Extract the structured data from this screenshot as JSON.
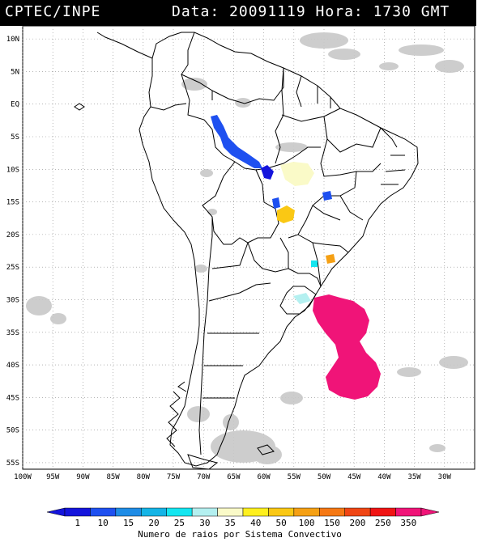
{
  "header": {
    "source": "CPTEC/INPE",
    "date_line": "Data: 20091119 Hora: 1730 GMT"
  },
  "map": {
    "lat_labels": [
      "10N",
      "5N",
      "EQ",
      "5S",
      "10S",
      "15S",
      "20S",
      "25S",
      "30S",
      "35S",
      "40S",
      "45S",
      "50S",
      "55S"
    ],
    "lat_values": [
      10,
      5,
      0,
      -5,
      -10,
      -15,
      -20,
      -25,
      -30,
      -35,
      -40,
      -45,
      -50,
      -55
    ],
    "lon_labels": [
      "100W",
      "95W",
      "90W",
      "85W",
      "80W",
      "75W",
      "70W",
      "65W",
      "60W",
      "55W",
      "50W",
      "45W",
      "40W",
      "35W",
      "30W"
    ],
    "lon_values": [
      -100,
      -95,
      -90,
      -85,
      -80,
      -75,
      -70,
      -65,
      -60,
      -55,
      -50,
      -45,
      -40,
      -35,
      -30
    ],
    "lon_range": [
      -100,
      -25
    ],
    "lat_range": [
      -56,
      12
    ],
    "land_color": "#ffffff",
    "border_color": "#000000",
    "cloud_color": "#c8c8c8",
    "grid": "dotted"
  },
  "legend": {
    "caption": "Numero de raios por Sistema Convectivo",
    "values": [
      "1",
      "10",
      "15",
      "20",
      "25",
      "30",
      "35",
      "40",
      "50",
      "100",
      "150",
      "200",
      "250",
      "350"
    ],
    "colors": [
      "#1414dc",
      "#1e50f0",
      "#1e8ce6",
      "#14b4e6",
      "#14e6f0",
      "#b4f0f0",
      "#fafac8",
      "#fff01e",
      "#fac814",
      "#f5a014",
      "#f57814",
      "#f04614",
      "#f01414",
      "#f01478"
    ]
  }
}
